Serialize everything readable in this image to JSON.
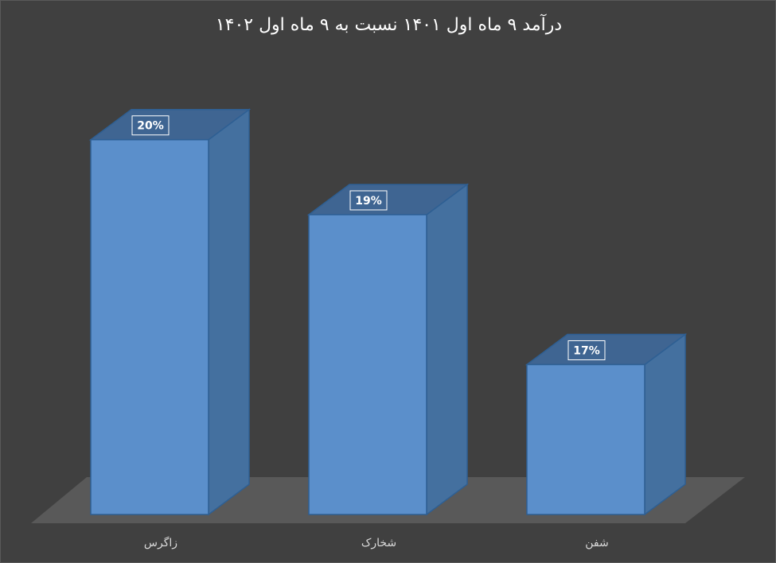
{
  "chart_data": {
    "type": "bar",
    "style": "3d-column",
    "title": "درآمد ۹ ماه اول ۱۴۰۱ نسبت به ۹ ماه اول ۱۴۰۲",
    "categories": [
      "زاگرس",
      "شخارک",
      "شفن"
    ],
    "values": [
      20,
      19,
      17
    ],
    "value_labels": [
      "20%",
      "19%",
      "17%"
    ],
    "unit": "%",
    "ylim": [
      15,
      20.4
    ],
    "grid": false,
    "legend": "none",
    "colors": {
      "background": "#404040",
      "bar_front": "#5b8fcb",
      "bar_top": "#3f6592",
      "bar_side": "#44709f",
      "bar_edge": "#2e5f93",
      "floor": "#595959",
      "label_box_border": "#ffffff",
      "label_box_fill": "#3f6592"
    }
  }
}
